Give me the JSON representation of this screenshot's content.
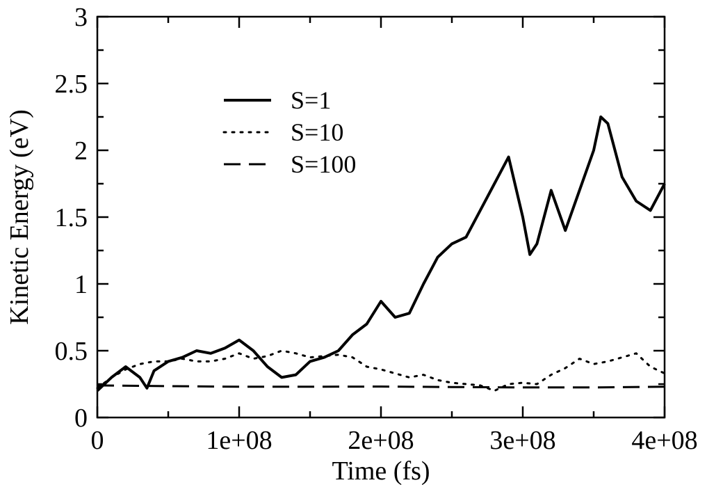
{
  "chart_data": {
    "type": "line",
    "xlabel": "Time (fs)",
    "ylabel": "Kinetic Energy (eV)",
    "xlim": [
      0,
      400000000
    ],
    "ylim": [
      0,
      3
    ],
    "xticks": [
      0,
      100000000,
      200000000,
      300000000,
      400000000
    ],
    "xtick_labels": [
      "0",
      "1e+08",
      "2e+08",
      "3e+08",
      "4e+08"
    ],
    "yticks": [
      0,
      0.5,
      1,
      1.5,
      2,
      2.5,
      3
    ],
    "ytick_labels": [
      "0",
      "0.5",
      "1",
      "1.5",
      "2",
      "2.5",
      "3"
    ],
    "grid": false,
    "legend_position": "upper-left inside plot",
    "series": [
      {
        "name": "S=1",
        "style": "solid",
        "color": "#000000",
        "x": [
          0,
          10000000,
          20000000,
          30000000,
          35000000,
          40000000,
          50000000,
          60000000,
          70000000,
          80000000,
          90000000,
          100000000,
          110000000,
          120000000,
          130000000,
          140000000,
          150000000,
          160000000,
          170000000,
          180000000,
          190000000,
          200000000,
          210000000,
          220000000,
          230000000,
          240000000,
          250000000,
          260000000,
          270000000,
          280000000,
          290000000,
          300000000,
          305000000,
          310000000,
          320000000,
          330000000,
          340000000,
          350000000,
          355000000,
          360000000,
          370000000,
          380000000,
          390000000,
          400000000
        ],
        "y": [
          0.2,
          0.3,
          0.38,
          0.3,
          0.22,
          0.35,
          0.42,
          0.45,
          0.5,
          0.48,
          0.52,
          0.58,
          0.5,
          0.38,
          0.3,
          0.32,
          0.42,
          0.45,
          0.5,
          0.62,
          0.7,
          0.87,
          0.75,
          0.78,
          1.0,
          1.2,
          1.3,
          1.35,
          1.55,
          1.75,
          1.95,
          1.5,
          1.22,
          1.3,
          1.7,
          1.4,
          1.7,
          2.0,
          2.25,
          2.2,
          1.8,
          1.62,
          1.55,
          1.75
        ]
      },
      {
        "name": "S=10",
        "style": "dotted",
        "color": "#000000",
        "x": [
          0,
          10000000,
          20000000,
          30000000,
          40000000,
          50000000,
          60000000,
          70000000,
          80000000,
          90000000,
          100000000,
          110000000,
          120000000,
          130000000,
          140000000,
          150000000,
          160000000,
          170000000,
          180000000,
          190000000,
          200000000,
          210000000,
          220000000,
          230000000,
          240000000,
          250000000,
          260000000,
          270000000,
          280000000,
          290000000,
          300000000,
          310000000,
          320000000,
          330000000,
          340000000,
          350000000,
          360000000,
          370000000,
          380000000,
          390000000,
          400000000
        ],
        "y": [
          0.22,
          0.3,
          0.36,
          0.4,
          0.42,
          0.42,
          0.44,
          0.42,
          0.42,
          0.44,
          0.48,
          0.44,
          0.46,
          0.5,
          0.48,
          0.45,
          0.46,
          0.47,
          0.45,
          0.38,
          0.36,
          0.33,
          0.3,
          0.32,
          0.28,
          0.26,
          0.25,
          0.24,
          0.2,
          0.25,
          0.26,
          0.25,
          0.32,
          0.37,
          0.44,
          0.4,
          0.42,
          0.45,
          0.48,
          0.38,
          0.33
        ]
      },
      {
        "name": "S=100",
        "style": "dashed",
        "color": "#000000",
        "x": [
          0,
          50000000,
          100000000,
          150000000,
          200000000,
          250000000,
          300000000,
          350000000,
          400000000
        ],
        "y": [
          0.24,
          0.235,
          0.23,
          0.23,
          0.232,
          0.228,
          0.225,
          0.225,
          0.23
        ]
      }
    ]
  }
}
